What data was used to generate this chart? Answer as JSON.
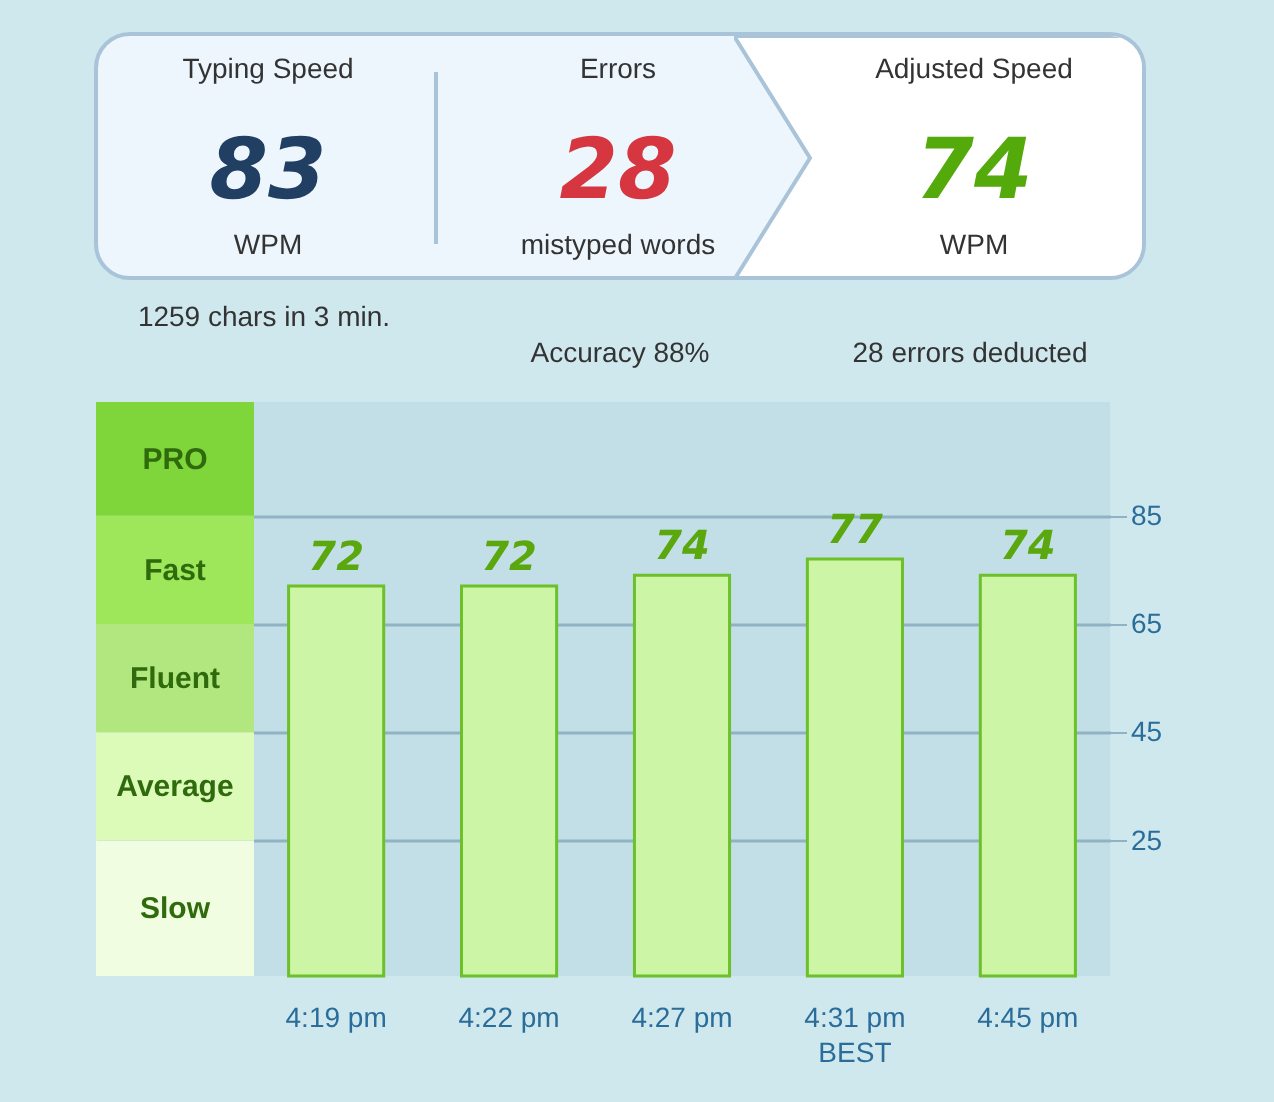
{
  "chart_data": [
    {
      "type": "other",
      "colors": [
        "#213f63",
        "#d6363f",
        "#54aa0a"
      ],
      "annotations": [
        "Typing Speed",
        "83",
        "WPM",
        "Errors",
        "28",
        "mistyped words",
        "Adjusted Speed",
        "74",
        "WPM",
        "1259 chars in 3 min.",
        "Accuracy 88%",
        "28 errors deducted"
      ]
    },
    {
      "type": "bar",
      "categories": [
        "4:19 pm",
        "4:22 pm",
        "4:27 pm",
        "4:31 pm",
        "4:45 pm"
      ],
      "series": [
        {
          "color": "#ccf5a5",
          "values": [
            72,
            72,
            74,
            77,
            74
          ]
        }
      ],
      "data_labels": true,
      "ylim": [
        0,
        106
      ],
      "yticks": [
        25,
        45,
        65,
        85
      ],
      "grid": "y",
      "bands": [
        {
          "axis": "y",
          "from": 85,
          "to": 106,
          "label": "PRO",
          "color": "#7ed63a"
        },
        {
          "axis": "y",
          "from": 65,
          "to": 85,
          "label": "Fast",
          "color": "#9ee65a"
        },
        {
          "axis": "y",
          "from": 45,
          "to": 65,
          "label": "Fluent",
          "color": "#b2e67e"
        },
        {
          "axis": "y",
          "from": 25,
          "to": 45,
          "label": "Average",
          "color": "#dcfbb8"
        },
        {
          "axis": "y",
          "from": 0,
          "to": 25,
          "label": "Slow",
          "color": "#f0fde0"
        }
      ],
      "annotations": [
        "BEST"
      ]
    }
  ]
}
